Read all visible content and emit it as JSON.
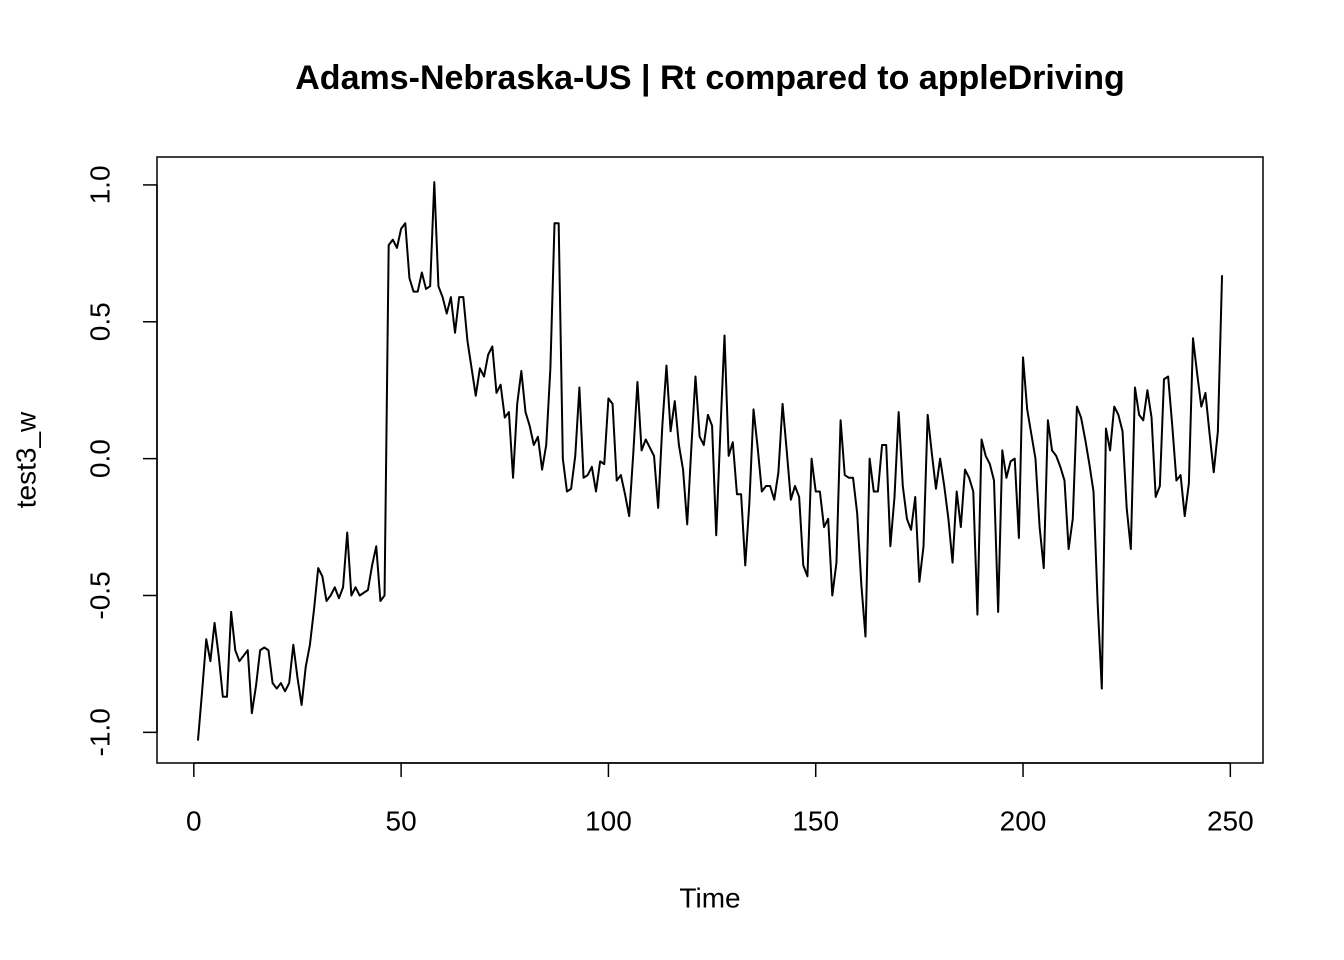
{
  "chart_data": {
    "type": "line",
    "title": "Adams-Nebraska-US | Rt compared to appleDriving",
    "xlabel": "Time",
    "ylabel": "test3_w",
    "color": "#000000",
    "x": [
      1,
      2,
      3,
      4,
      5,
      6,
      7,
      8,
      9,
      10,
      11,
      12,
      13,
      14,
      15,
      16,
      17,
      18,
      19,
      20,
      21,
      22,
      23,
      24,
      25,
      26,
      27,
      28,
      29,
      30,
      31,
      32,
      33,
      34,
      35,
      36,
      37,
      38,
      39,
      40,
      41,
      42,
      43,
      44,
      45,
      46,
      47,
      48,
      49,
      50,
      51,
      52,
      53,
      54,
      55,
      56,
      57,
      58,
      59,
      60,
      61,
      62,
      63,
      64,
      65,
      66,
      67,
      68,
      69,
      70,
      71,
      72,
      73,
      74,
      75,
      76,
      77,
      78,
      79,
      80,
      81,
      82,
      83,
      84,
      85,
      86,
      87,
      88,
      89,
      90,
      91,
      92,
      93,
      94,
      95,
      96,
      97,
      98,
      99,
      100,
      101,
      102,
      103,
      104,
      105,
      106,
      107,
      108,
      109,
      110,
      111,
      112,
      113,
      114,
      115,
      116,
      117,
      118,
      119,
      120,
      121,
      122,
      123,
      124,
      125,
      126,
      127,
      128,
      129,
      130,
      131,
      132,
      133,
      134,
      135,
      136,
      137,
      138,
      139,
      140,
      141,
      142,
      143,
      144,
      145,
      146,
      147,
      148,
      149,
      150,
      151,
      152,
      153,
      154,
      155,
      156,
      157,
      158,
      159,
      160,
      161,
      162,
      163,
      164,
      165,
      166,
      167,
      168,
      169,
      170,
      171,
      172,
      173,
      174,
      175,
      176,
      177,
      178,
      179,
      180,
      181,
      182,
      183,
      184,
      185,
      186,
      187,
      188,
      189,
      190,
      191,
      192,
      193,
      194,
      195,
      196,
      197,
      198,
      199,
      200,
      201,
      202,
      203,
      204,
      205,
      206,
      207,
      208,
      209,
      210,
      211,
      212,
      213,
      214,
      215,
      216,
      217,
      218,
      219,
      220,
      221,
      222,
      223,
      224,
      225,
      226,
      227,
      228,
      229,
      230,
      231,
      232,
      233,
      234,
      235,
      236,
      237,
      238,
      239,
      240,
      241,
      242,
      243,
      244,
      245,
      246,
      247,
      248
    ],
    "values": [
      -1.03,
      -0.85,
      -0.66,
      -0.74,
      -0.6,
      -0.72,
      -0.87,
      -0.87,
      -0.56,
      -0.7,
      -0.74,
      -0.72,
      -0.7,
      -0.93,
      -0.83,
      -0.7,
      -0.69,
      -0.7,
      -0.82,
      -0.84,
      -0.82,
      -0.85,
      -0.82,
      -0.68,
      -0.8,
      -0.9,
      -0.76,
      -0.68,
      -0.55,
      -0.4,
      -0.43,
      -0.52,
      -0.5,
      -0.47,
      -0.51,
      -0.47,
      -0.27,
      -0.5,
      -0.47,
      -0.5,
      -0.49,
      -0.48,
      -0.39,
      -0.32,
      -0.52,
      -0.5,
      0.78,
      0.8,
      0.77,
      0.84,
      0.86,
      0.66,
      0.61,
      0.61,
      0.68,
      0.62,
      0.63,
      1.01,
      0.63,
      0.59,
      0.53,
      0.59,
      0.46,
      0.59,
      0.59,
      0.43,
      0.33,
      0.23,
      0.33,
      0.3,
      0.38,
      0.41,
      0.24,
      0.27,
      0.15,
      0.17,
      -0.07,
      0.2,
      0.32,
      0.17,
      0.12,
      0.05,
      0.08,
      -0.04,
      0.05,
      0.33,
      0.86,
      0.86,
      0.0,
      -0.12,
      -0.11,
      0.01,
      0.26,
      -0.07,
      -0.06,
      -0.03,
      -0.12,
      -0.01,
      -0.02,
      0.22,
      0.2,
      -0.08,
      -0.06,
      -0.13,
      -0.21,
      0.02,
      0.28,
      0.03,
      0.07,
      0.04,
      0.01,
      -0.18,
      0.12,
      0.34,
      0.1,
      0.21,
      0.05,
      -0.04,
      -0.24,
      0.04,
      0.3,
      0.08,
      0.05,
      0.16,
      0.12,
      -0.28,
      0.1,
      0.45,
      0.01,
      0.06,
      -0.13,
      -0.13,
      -0.39,
      -0.16,
      0.18,
      0.04,
      -0.12,
      -0.1,
      -0.1,
      -0.15,
      -0.05,
      0.2,
      0.03,
      -0.15,
      -0.1,
      -0.14,
      -0.39,
      -0.43,
      0.0,
      -0.12,
      -0.12,
      -0.25,
      -0.22,
      -0.5,
      -0.38,
      0.14,
      -0.06,
      -0.07,
      -0.07,
      -0.2,
      -0.46,
      -0.65,
      0.0,
      -0.12,
      -0.12,
      0.05,
      0.05,
      -0.32,
      -0.14,
      0.17,
      -0.1,
      -0.22,
      -0.26,
      -0.14,
      -0.45,
      -0.32,
      0.16,
      0.02,
      -0.11,
      0.0,
      -0.1,
      -0.22,
      -0.38,
      -0.12,
      -0.25,
      -0.04,
      -0.07,
      -0.12,
      -0.57,
      0.07,
      0.01,
      -0.02,
      -0.08,
      -0.56,
      0.03,
      -0.07,
      -0.01,
      0.0,
      -0.29,
      0.37,
      0.18,
      0.09,
      0.0,
      -0.25,
      -0.4,
      0.14,
      0.03,
      0.01,
      -0.03,
      -0.08,
      -0.33,
      -0.22,
      0.19,
      0.15,
      0.07,
      -0.02,
      -0.12,
      -0.53,
      -0.84,
      0.11,
      0.03,
      0.19,
      0.16,
      0.1,
      -0.18,
      -0.33,
      0.26,
      0.16,
      0.14,
      0.25,
      0.15,
      -0.14,
      -0.1,
      0.29,
      0.3,
      0.12,
      -0.08,
      -0.06,
      -0.21,
      -0.09,
      0.44,
      0.31,
      0.19,
      0.24,
      0.09,
      -0.05,
      0.1,
      0.67
    ],
    "xlim": [
      -8.88,
      257.88
    ],
    "ylim": [
      -1.112,
      1.102
    ],
    "xticks": [
      0,
      50,
      100,
      150,
      200,
      250
    ],
    "yticks": [
      {
        "value": -1,
        "label": "-1.0"
      },
      {
        "value": -0.5,
        "label": "-0.5"
      },
      {
        "value": 0,
        "label": "0.0"
      },
      {
        "value": 0.5,
        "label": "0.5"
      },
      {
        "value": 1,
        "label": "1.0"
      }
    ]
  }
}
